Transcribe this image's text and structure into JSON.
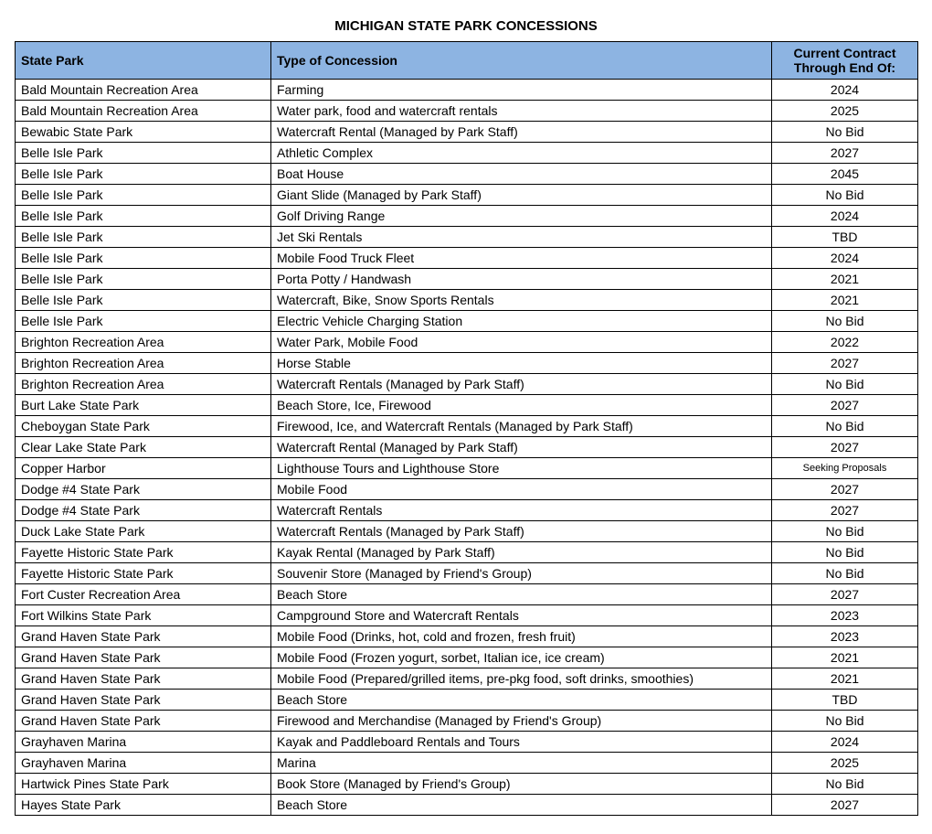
{
  "title": "MICHIGAN STATE PARK CONCESSIONS",
  "columns": {
    "park": "State Park",
    "type": "Type of Concession",
    "contract": "Current Contract Through End Of:"
  },
  "header_bg": "#8DB4E2",
  "rows": [
    {
      "park": "Bald Mountain Recreation Area",
      "type": "Farming",
      "contract": "2024"
    },
    {
      "park": "Bald Mountain Recreation Area",
      "type": "Water park, food and watercraft rentals",
      "contract": "2025"
    },
    {
      "park": "Bewabic State Park",
      "type": "Watercraft Rental (Managed by Park Staff)",
      "contract": "No Bid"
    },
    {
      "park": "Belle Isle Park",
      "type": "Athletic Complex",
      "contract": "2027"
    },
    {
      "park": "Belle Isle Park",
      "type": "Boat House",
      "contract": "2045"
    },
    {
      "park": "Belle Isle Park",
      "type": "Giant Slide (Managed by Park Staff)",
      "contract": "No Bid"
    },
    {
      "park": "Belle Isle Park",
      "type": "Golf Driving Range",
      "contract": "2024"
    },
    {
      "park": "Belle Isle Park",
      "type": "Jet Ski Rentals",
      "contract": "TBD"
    },
    {
      "park": "Belle Isle Park",
      "type": "Mobile Food Truck Fleet",
      "contract": "2024"
    },
    {
      "park": "Belle Isle Park",
      "type": "Porta Potty / Handwash",
      "contract": "2021"
    },
    {
      "park": "Belle Isle Park",
      "type": "Watercraft, Bike, Snow Sports Rentals",
      "contract": "2021"
    },
    {
      "park": "Belle Isle Park",
      "type": "Electric Vehicle Charging Station",
      "contract": "No Bid"
    },
    {
      "park": "Brighton Recreation Area",
      "type": "Water Park, Mobile Food",
      "contract": "2022"
    },
    {
      "park": "Brighton Recreation Area",
      "type": "Horse Stable",
      "contract": "2027"
    },
    {
      "park": "Brighton Recreation Area",
      "type": "Watercraft Rentals (Managed by Park Staff)",
      "contract": "No Bid"
    },
    {
      "park": "Burt Lake State Park",
      "type": "Beach Store, Ice, Firewood",
      "contract": "2027"
    },
    {
      "park": "Cheboygan State Park",
      "type": "Firewood, Ice, and Watercraft Rentals (Managed by Park Staff)",
      "contract": "No Bid"
    },
    {
      "park": "Clear Lake State Park",
      "type": "Watercraft Rental (Managed by Park Staff)",
      "contract": "2027"
    },
    {
      "park": "Copper Harbor",
      "type": "Lighthouse Tours and Lighthouse Store",
      "contract": "Seeking Proposals",
      "small": true
    },
    {
      "park": "Dodge #4 State Park",
      "type": "Mobile Food",
      "contract": "2027"
    },
    {
      "park": "Dodge #4 State Park",
      "type": "Watercraft Rentals",
      "contract": "2027"
    },
    {
      "park": "Duck Lake State Park",
      "type": "Watercraft Rentals (Managed by Park Staff)",
      "contract": "No Bid"
    },
    {
      "park": "Fayette Historic State Park",
      "type": "Kayak Rental (Managed by Park Staff)",
      "contract": "No Bid"
    },
    {
      "park": "Fayette Historic State Park",
      "type": "Souvenir Store (Managed by Friend's Group)",
      "contract": "No Bid"
    },
    {
      "park": "Fort Custer Recreation Area",
      "type": "Beach Store",
      "contract": "2027"
    },
    {
      "park": "Fort Wilkins State Park",
      "type": "Campground Store and Watercraft Rentals",
      "contract": "2023"
    },
    {
      "park": "Grand Haven State Park",
      "type": "Mobile Food (Drinks, hot, cold and frozen, fresh fruit)",
      "contract": "2023"
    },
    {
      "park": "Grand Haven State Park",
      "type": "Mobile Food (Frozen yogurt, sorbet, Italian ice, ice cream)",
      "contract": "2021"
    },
    {
      "park": "Grand Haven State Park",
      "type": "Mobile Food (Prepared/grilled items, pre-pkg food, soft drinks, smoothies)",
      "contract": "2021"
    },
    {
      "park": "Grand Haven State Park",
      "type": "Beach Store",
      "contract": "TBD"
    },
    {
      "park": "Grand Haven State Park",
      "type": "Firewood and Merchandise (Managed by Friend's Group)",
      "contract": "No Bid"
    },
    {
      "park": "Grayhaven Marina",
      "type": "Kayak and Paddleboard Rentals and Tours",
      "contract": "2024"
    },
    {
      "park": "Grayhaven Marina",
      "type": "Marina",
      "contract": "2025"
    },
    {
      "park": "Hartwick Pines State Park",
      "type": "Book Store (Managed by Friend's Group)",
      "contract": "No Bid"
    },
    {
      "park": "Hayes State Park",
      "type": "Beach Store",
      "contract": "2027"
    }
  ]
}
